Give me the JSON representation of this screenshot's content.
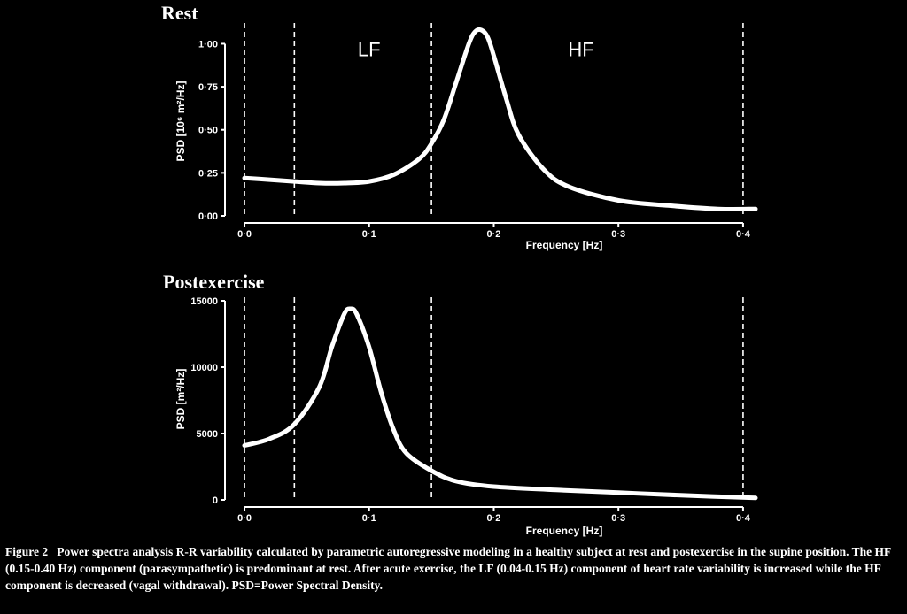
{
  "chart_data": [
    {
      "type": "line",
      "title": "Rest",
      "xlabel": "Frequency [Hz]",
      "ylabel": "PSD [10⁶ m²/Hz]",
      "xlim": [
        -0.005,
        0.41
      ],
      "ylim": [
        0,
        1.1
      ],
      "xticks": [
        0.0,
        0.1,
        0.2,
        0.3,
        0.4
      ],
      "xtick_labels": [
        "0·0",
        "0·1",
        "0·2",
        "0·3",
        "0·4"
      ],
      "yticks": [
        0.0,
        0.25,
        0.5,
        0.75,
        1.0
      ],
      "ytick_labels": [
        "0·00",
        "0·25",
        "0·50",
        "0·75",
        "1·00"
      ],
      "vlines": [
        0.0,
        0.04,
        0.15,
        0.4
      ],
      "band_labels": [
        {
          "text": "LF",
          "x": 0.1,
          "y": 0.97
        },
        {
          "text": "HF",
          "x": 0.27,
          "y": 0.97
        }
      ],
      "series": [
        {
          "x": [
            0.0,
            0.02,
            0.04,
            0.06,
            0.08,
            0.1,
            0.12,
            0.14,
            0.15,
            0.16,
            0.17,
            0.18,
            0.185,
            0.19,
            0.195,
            0.2,
            0.21,
            0.22,
            0.24,
            0.26,
            0.3,
            0.34,
            0.38,
            0.41
          ],
          "y": [
            0.22,
            0.21,
            0.2,
            0.19,
            0.19,
            0.2,
            0.24,
            0.33,
            0.42,
            0.56,
            0.78,
            1.0,
            1.07,
            1.08,
            1.04,
            0.93,
            0.68,
            0.47,
            0.27,
            0.17,
            0.09,
            0.06,
            0.04,
            0.04
          ]
        }
      ]
    },
    {
      "type": "line",
      "title": "Postexercise",
      "xlabel": "Frequency [Hz]",
      "ylabel": "PSD [m²/Hz]",
      "xlim": [
        -0.005,
        0.41
      ],
      "ylim": [
        0,
        15000
      ],
      "xticks": [
        0.0,
        0.1,
        0.2,
        0.3,
        0.4
      ],
      "xtick_labels": [
        "0·0",
        "0·1",
        "0·2",
        "0·3",
        "0·4"
      ],
      "yticks": [
        0,
        5000,
        10000,
        15000
      ],
      "ytick_labels": [
        "0",
        "5000",
        "10000",
        "15000"
      ],
      "vlines": [
        0.0,
        0.04,
        0.15,
        0.4
      ],
      "series": [
        {
          "x": [
            0.0,
            0.02,
            0.04,
            0.06,
            0.07,
            0.08,
            0.085,
            0.09,
            0.1,
            0.11,
            0.12,
            0.13,
            0.15,
            0.17,
            0.2,
            0.25,
            0.3,
            0.35,
            0.41
          ],
          "y": [
            4100,
            4600,
            5700,
            8500,
            11500,
            14000,
            14400,
            14000,
            11500,
            8000,
            5200,
            3500,
            2200,
            1400,
            1000,
            750,
            550,
            350,
            150
          ]
        }
      ]
    }
  ],
  "caption": {
    "label": "Figure 2",
    "text": "Power spectra analysis R-R variability calculated by parametric autoregressive modeling in a healthy subject at rest and postexercise in the supine position.  The HF (0.15-0.40 Hz) component (parasympathetic) is predominant at rest.  After acute exercise, the LF (0.04-0.15 Hz) component  of heart rate variability is increased while the HF component is decreased (vagal withdrawal). PSD=Power Spectral Density."
  },
  "colors": {
    "background": "#000000",
    "foreground": "#ffffff"
  }
}
